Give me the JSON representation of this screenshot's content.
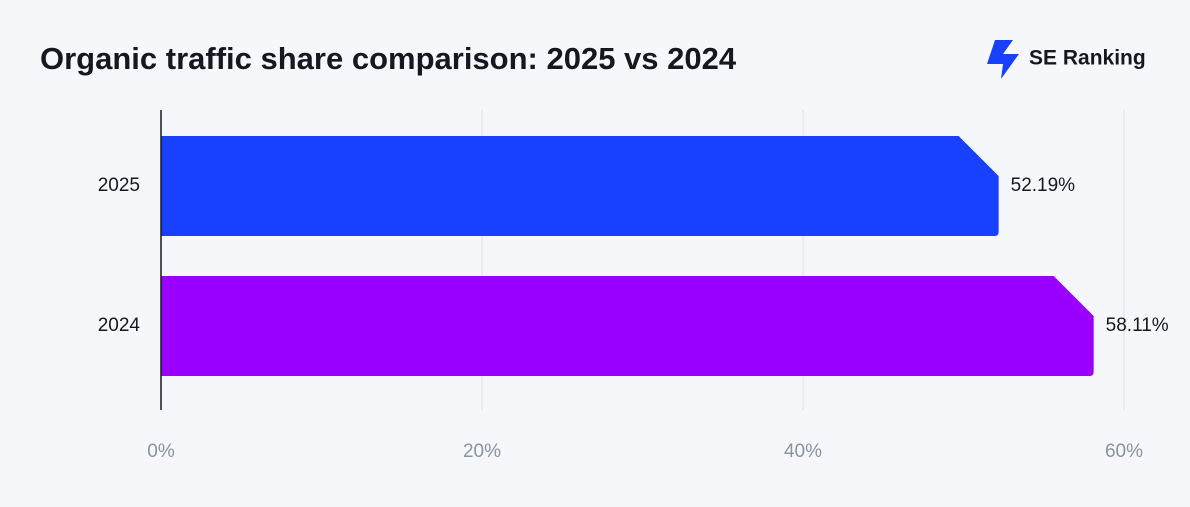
{
  "logo_text": "SE Ranking",
  "chart_data": {
    "type": "hbar",
    "title": "Organic traffic share comparison: 2025 vs 2024",
    "categories": [
      "2025",
      "2024"
    ],
    "values": [
      52.19,
      58.11
    ],
    "value_labels": [
      "52.19%",
      "58.11%"
    ],
    "colors": [
      "#1740ff",
      "#9900ff"
    ],
    "xlim": [
      0,
      60
    ],
    "xticks": [
      {
        "value": 0,
        "label": "0%"
      },
      {
        "value": 20,
        "label": "20%"
      },
      {
        "value": 40,
        "label": "40%"
      },
      {
        "value": 60,
        "label": "60%"
      }
    ],
    "grid": true
  }
}
